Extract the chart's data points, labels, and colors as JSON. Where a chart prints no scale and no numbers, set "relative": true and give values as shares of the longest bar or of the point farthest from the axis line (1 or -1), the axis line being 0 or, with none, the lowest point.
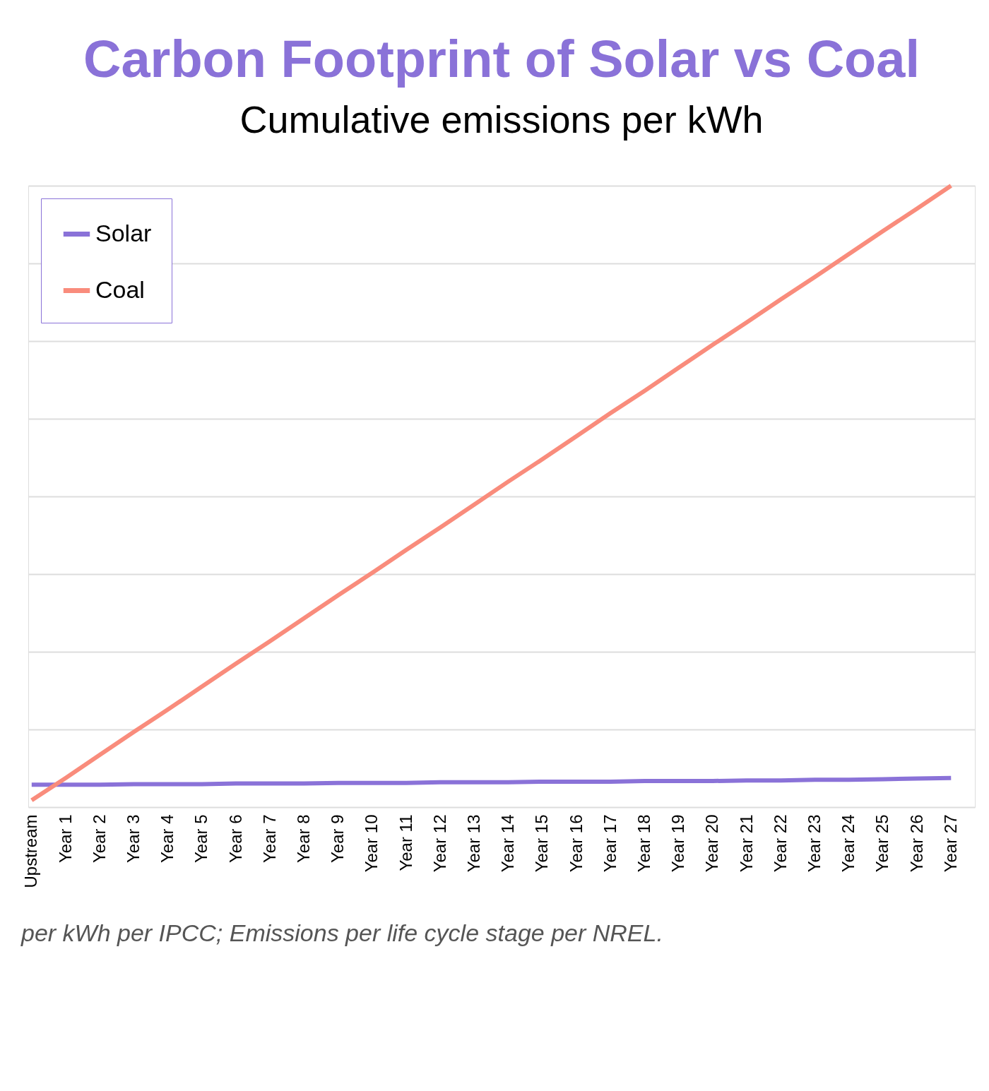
{
  "chart_data": {
    "type": "line",
    "title": "Carbon Footprint of Solar vs Coal",
    "subtitle": "Cumulative emissions per kWh",
    "categories": [
      "Upstream",
      "Year 1",
      "Year 2",
      "Year 3",
      "Year 4",
      "Year 5",
      "Year 6",
      "Year 7",
      "Year 8",
      "Year 9",
      "Year 10",
      "Year 11",
      "Year 12",
      "Year 13",
      "Year 14",
      "Year 15",
      "Year 16",
      "Year 17",
      "Year 18",
      "Year 19",
      "Year 20",
      "Year 21",
      "Year 22",
      "Year 23",
      "Year 24",
      "Year 25",
      "Year 26",
      "Year 27"
    ],
    "relative": true,
    "series": [
      {
        "name": "Solar",
        "color": "#8a72d8",
        "values": [
          0.036,
          0.036,
          0.036,
          0.037,
          0.037,
          0.037,
          0.038,
          0.038,
          0.038,
          0.039,
          0.039,
          0.039,
          0.04,
          0.04,
          0.04,
          0.041,
          0.041,
          0.041,
          0.042,
          0.042,
          0.042,
          0.043,
          0.043,
          0.044,
          0.044,
          0.045,
          0.046,
          0.047
        ]
      },
      {
        "name": "Coal",
        "color": "#f98c7c",
        "values": [
          0.011,
          0.047,
          0.084,
          0.121,
          0.157,
          0.194,
          0.231,
          0.267,
          0.304,
          0.341,
          0.377,
          0.414,
          0.45,
          0.487,
          0.524,
          0.56,
          0.597,
          0.634,
          0.67,
          0.707,
          0.744,
          0.78,
          0.817,
          0.853,
          0.89,
          0.927,
          0.963,
          1.0
        ]
      }
    ],
    "grid": "y",
    "legend": "top left",
    "marker": "none",
    "line_style": "solid",
    "annotations": [
      "per kWh per IPCC; Emissions per life cycle stage per NREL."
    ]
  }
}
